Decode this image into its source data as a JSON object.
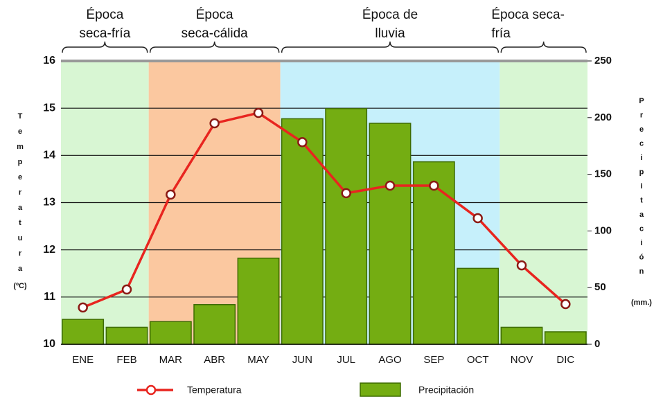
{
  "chart_data": {
    "type": "bar_line",
    "categories": [
      "ENE",
      "FEB",
      "MAR",
      "ABR",
      "MAY",
      "JUN",
      "JUL",
      "AGO",
      "SEP",
      "OCT",
      "NOV",
      "DIC"
    ],
    "series": [
      {
        "name": "Temperatura",
        "type": "line",
        "axis": "y",
        "color": "#e8251f",
        "values": [
          10.78,
          11.16,
          13.17,
          14.68,
          14.9,
          14.28,
          13.2,
          13.36,
          13.36,
          12.67,
          11.67,
          10.85
        ]
      },
      {
        "name": "Precipitación",
        "type": "bar",
        "axis": "y2",
        "color": "#74ad12",
        "values": [
          22,
          15,
          20,
          35,
          76,
          199,
          208,
          195,
          161,
          67,
          15,
          11
        ]
      }
    ],
    "ylabel": "Temperatura",
    "ylabel_unit": "(ºC)",
    "y2label": "Precipitación",
    "y2label_unit": "(mm.)",
    "ylim": [
      10,
      16
    ],
    "yticks": [
      10,
      11,
      12,
      13,
      14,
      15,
      16
    ],
    "y2lim": [
      0,
      250
    ],
    "y2ticks": [
      0,
      50,
      100,
      150,
      200,
      250
    ],
    "grid": true,
    "seasons": [
      {
        "lines": [
          "Época",
          "seca-fría"
        ],
        "from": "ENE",
        "to": "FEB",
        "color": "#d8f6d3"
      },
      {
        "lines": [
          "Época",
          "seca-cálida"
        ],
        "from": "MAR",
        "to": "MAY",
        "color": "#fbc8a0"
      },
      {
        "lines": [
          "Época de",
          "lluvia"
        ],
        "from": "JUN",
        "to": "OCT",
        "color": "#c6f0fb"
      },
      {
        "lines": [
          "Época seca-",
          "fría"
        ],
        "from": "NOV",
        "to": "DIC",
        "color": "#d8f6d3"
      }
    ]
  }
}
